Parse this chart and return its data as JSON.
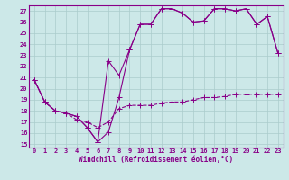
{
  "title": "",
  "xlabel": "Windchill (Refroidissement éolien,°C)",
  "background_color": "#cce8e8",
  "grid_color": "#aacccc",
  "line_color": "#880088",
  "x_ticks": [
    0,
    1,
    2,
    3,
    4,
    5,
    6,
    7,
    8,
    9,
    10,
    11,
    12,
    13,
    14,
    15,
    16,
    17,
    18,
    19,
    20,
    21,
    22,
    23
  ],
  "ylim": [
    14.7,
    27.5
  ],
  "xlim": [
    -0.5,
    23.5
  ],
  "y_ticks": [
    15,
    16,
    17,
    18,
    19,
    20,
    21,
    22,
    23,
    24,
    25,
    26,
    27
  ],
  "series1_x": [
    0,
    1,
    2,
    3,
    4,
    5,
    6,
    7,
    8,
    9,
    10,
    11,
    12,
    13,
    14,
    15,
    16,
    17,
    18,
    19,
    20,
    21,
    22,
    23
  ],
  "series1_y": [
    20.8,
    18.8,
    18.0,
    17.8,
    17.5,
    16.5,
    15.2,
    16.1,
    19.2,
    23.5,
    25.8,
    25.8,
    27.2,
    27.2,
    26.8,
    26.0,
    26.1,
    27.2,
    27.2,
    27.0,
    27.2,
    25.8,
    26.5,
    23.2
  ],
  "series2_x": [
    0,
    1,
    2,
    3,
    4,
    5,
    6,
    7,
    8,
    9,
    10,
    11,
    12,
    13,
    14,
    15,
    16,
    17,
    18,
    19,
    20,
    21,
    22,
    23
  ],
  "series2_y": [
    20.8,
    18.8,
    18.0,
    17.8,
    17.5,
    16.5,
    15.2,
    22.5,
    21.2,
    23.5,
    25.8,
    25.8,
    27.2,
    27.2,
    26.8,
    26.0,
    26.1,
    27.2,
    27.2,
    27.0,
    27.2,
    25.8,
    26.5,
    23.2
  ],
  "series3_x": [
    0,
    1,
    2,
    3,
    4,
    5,
    6,
    7,
    8,
    9,
    10,
    11,
    12,
    13,
    14,
    15,
    16,
    17,
    18,
    19,
    20,
    21,
    22,
    23
  ],
  "series3_y": [
    20.8,
    18.8,
    18.0,
    17.8,
    17.2,
    17.0,
    16.5,
    17.0,
    18.2,
    18.5,
    18.5,
    18.5,
    18.7,
    18.8,
    18.8,
    19.0,
    19.2,
    19.2,
    19.3,
    19.5,
    19.5,
    19.5,
    19.5,
    19.5
  ]
}
